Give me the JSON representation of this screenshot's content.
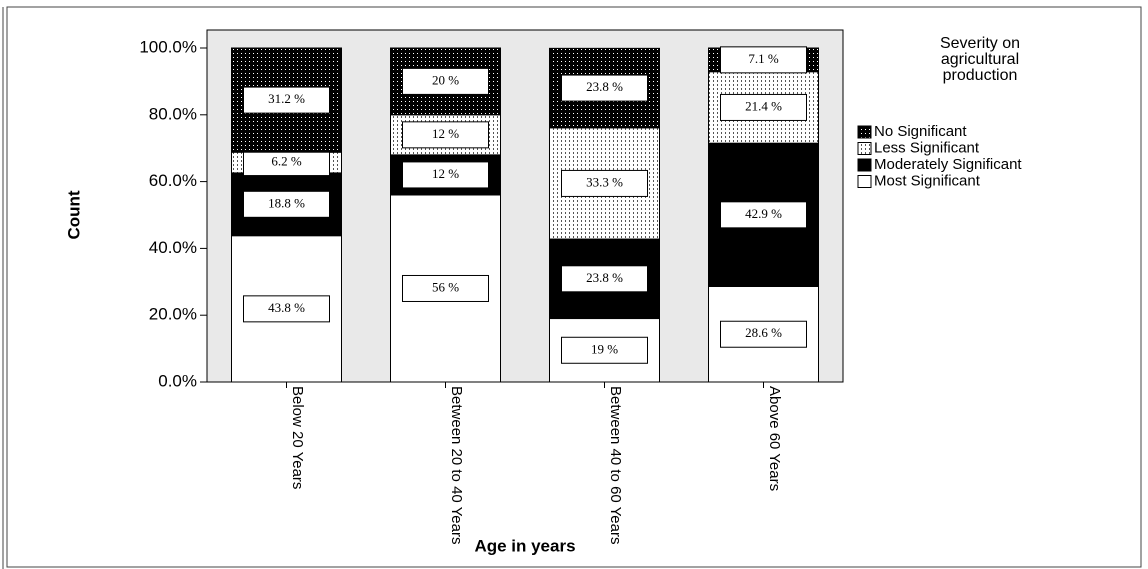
{
  "chart_data": {
    "type": "stacked_bar",
    "x_label": "Age in years",
    "y_label": "Count",
    "legend_title": "Severity on agricultural production",
    "categories": [
      "Below 20 Years",
      "Between 20 to 40 Years",
      "Between 40 to 60 Years",
      "Above 60 Years"
    ],
    "series": [
      {
        "name": "Most Significant",
        "color": "#ffffff",
        "values": [
          43.8,
          56,
          19,
          28.6
        ],
        "value_labels": [
          "43.8 %",
          "56 %",
          "19 %",
          "28.6 %"
        ]
      },
      {
        "name": "Moderately Significant",
        "color": "#000000",
        "values": [
          18.8,
          12,
          23.8,
          42.9
        ],
        "value_labels": [
          "18.8 %",
          "12 %",
          "23.8 %",
          "42.9 %"
        ]
      },
      {
        "name": "Less Significant",
        "color": "#ffffff",
        "values": [
          6.2,
          12,
          33.3,
          21.4
        ],
        "value_labels": [
          "6.2 %",
          "12 %",
          "33.3 %",
          "21.4 %"
        ]
      },
      {
        "name": "No Significant",
        "color": "#000000",
        "values": [
          31.2,
          20,
          23.8,
          7.1
        ],
        "value_labels": [
          "31.2 %",
          "20 %",
          "23.8 %",
          "7.1 %"
        ]
      }
    ],
    "ylim": [
      0,
      100
    ],
    "yticks": [
      {
        "value": 0,
        "label": "0.0%"
      },
      {
        "value": 20,
        "label": "20.0%"
      },
      {
        "value": 40,
        "label": "40.0%"
      },
      {
        "value": 60,
        "label": "60.0%"
      },
      {
        "value": 80,
        "label": "80.0%"
      },
      {
        "value": 100,
        "label": "100.0%"
      }
    ],
    "legend": "right"
  }
}
